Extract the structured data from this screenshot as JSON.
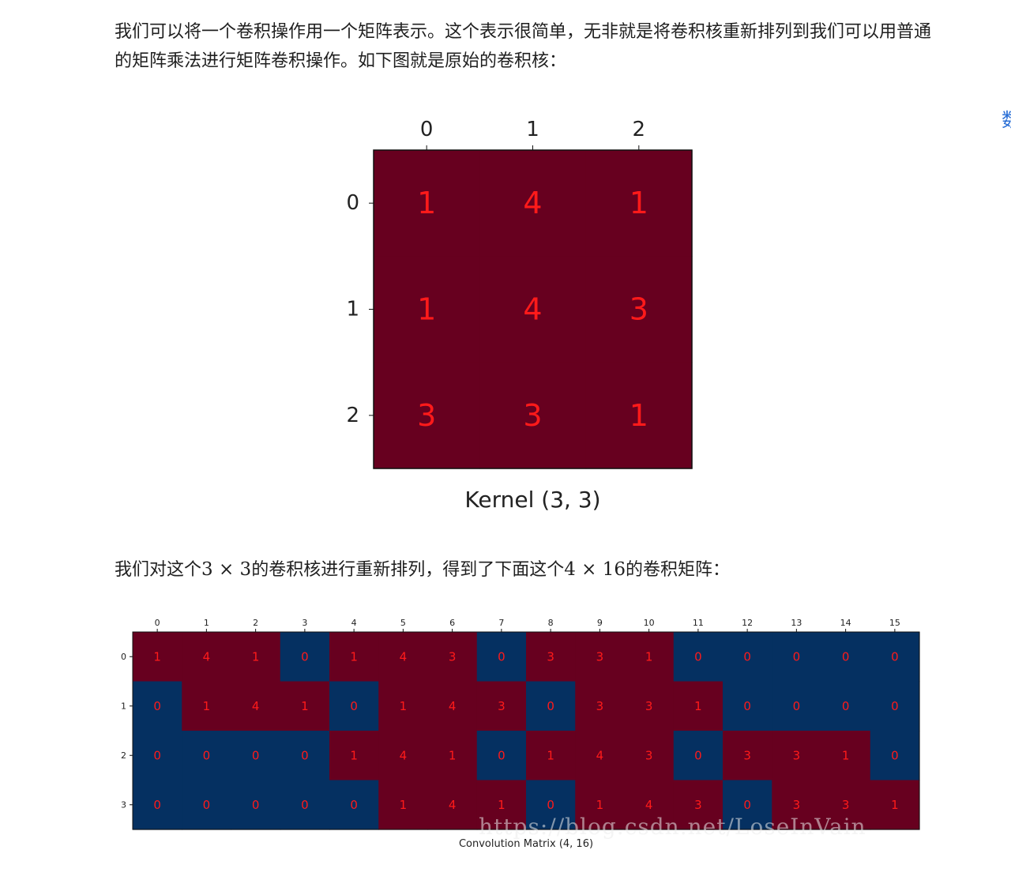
{
  "text": {
    "paragraph1": "我们可以将一个卷积操作用一个矩阵表示。这个表示很简单，无非就是将卷积核重新排列到我们可以用普通的矩阵乘法进行矩阵卷积操作。如下图就是原始的卷积核：",
    "paragraph2": {
      "part1": "我们对这个",
      "math1": "3 × 3",
      "part2": "的卷积核进行重新排列，得到了下面这个",
      "math2": "4 × 16",
      "part3": "的卷积矩阵："
    },
    "edge_glyph": "数",
    "watermark": "https://blog.csdn.net/LoseInVain"
  },
  "colors": {
    "dark_red": "#67001f",
    "dark_blue": "#053061",
    "label_red": "#ff1a1a",
    "text": "#1f1f1f"
  },
  "chart_data": [
    {
      "type": "heatmap",
      "title": "Kernel (3, 3)",
      "x_ticks": [
        "0",
        "1",
        "2"
      ],
      "y_ticks": [
        "0",
        "1",
        "2"
      ],
      "values": [
        [
          1,
          4,
          1
        ],
        [
          1,
          4,
          3
        ],
        [
          3,
          3,
          1
        ]
      ]
    },
    {
      "type": "heatmap",
      "title": "Convolution Matrix (4, 16)",
      "x_ticks": [
        "0",
        "1",
        "2",
        "3",
        "4",
        "5",
        "6",
        "7",
        "8",
        "9",
        "10",
        "11",
        "12",
        "13",
        "14",
        "15"
      ],
      "y_ticks": [
        "0",
        "1",
        "2",
        "3"
      ],
      "values": [
        [
          1,
          4,
          1,
          0,
          1,
          4,
          3,
          0,
          3,
          3,
          1,
          0,
          0,
          0,
          0,
          0
        ],
        [
          0,
          1,
          4,
          1,
          0,
          1,
          4,
          3,
          0,
          3,
          3,
          1,
          0,
          0,
          0,
          0
        ],
        [
          0,
          0,
          0,
          0,
          1,
          4,
          1,
          0,
          1,
          4,
          3,
          0,
          3,
          3,
          1,
          0
        ],
        [
          0,
          0,
          0,
          0,
          0,
          1,
          4,
          1,
          0,
          1,
          4,
          3,
          0,
          3,
          3,
          1
        ]
      ]
    }
  ]
}
